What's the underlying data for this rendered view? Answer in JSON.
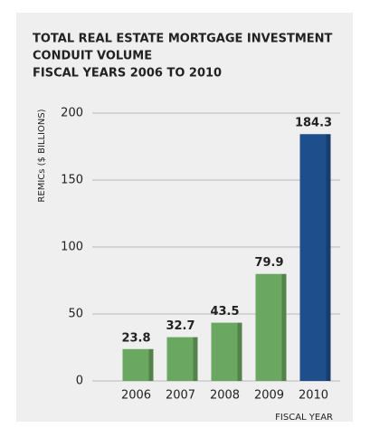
{
  "chart_data": {
    "type": "bar",
    "title": [
      "TOTAL REAL ESTATE MORTGAGE INVESTMENT",
      "CONDUIT VOLUME",
      "FISCAL YEARS 2006 TO 2010"
    ],
    "ylabel": "REMICs ($ BILLIONS)",
    "xlabel": "FISCAL YEAR",
    "categories": [
      "2006",
      "2007",
      "2008",
      "2009",
      "2010"
    ],
    "values": [
      23.8,
      32.7,
      43.5,
      79.9,
      184.3
    ],
    "colors": [
      "#6aa760",
      "#6aa760",
      "#6aa760",
      "#6aa760",
      "#1f4e8c"
    ],
    "ylim": [
      0,
      200
    ],
    "yticks": [
      0,
      50,
      100,
      150,
      200
    ],
    "grid": true
  }
}
